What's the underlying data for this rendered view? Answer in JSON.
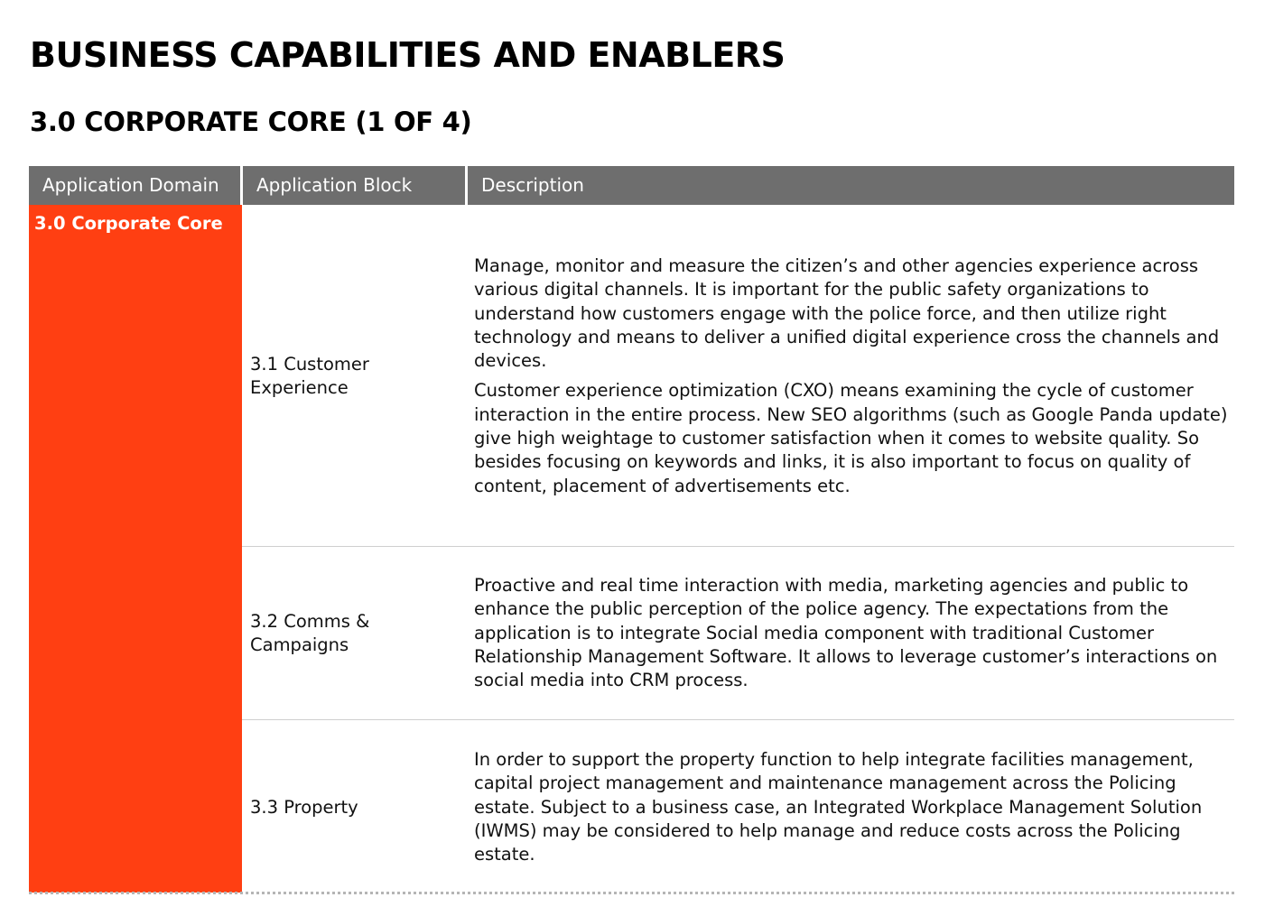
{
  "page": {
    "title": "BUSINESS CAPABILITIES AND ENABLERS",
    "section_title": "3.0 CORPORATE CORE (1 OF 4)"
  },
  "colors": {
    "domain_fill": "#ff3f12",
    "header_fill": "#6e6e6e"
  },
  "table": {
    "headers": {
      "domain": "Application Domain",
      "block": "Application Block",
      "description": "Description"
    },
    "domain": "3.0 Corporate Core",
    "rows": [
      {
        "block": "3.1 Customer Experience",
        "paragraphs": [
          "Manage, monitor and measure the citizen’s and other agencies experience across various digital channels. It is  important  for the public safety organizations to understand how customers engage with  the police force, and then utilize right technology and means  to deliver a unified digital experience cross the channels and devices.",
          "Customer experience optimization (CXO) means examining the cycle of customer interaction in the entire process. New SEO algorithms (such as Google Panda update) give high weightage to customer satisfaction when it comes to website quality. So besides focusing on keywords and links, it is also important to focus on quality of content, placement of advertisements etc."
        ]
      },
      {
        "block": "3.2 Comms & Campaigns",
        "paragraphs": [
          "Proactive and real time interaction with media, marketing agencies and public to enhance the public perception of the police agency. The expectations from the application is to integrate Social media component with traditional Customer Relationship Management Software. It allows to leverage customer’s interactions on social media into CRM process."
        ]
      },
      {
        "block": "3.3 Property",
        "paragraphs": [
          "In order to support the property function to help integrate facilities management, capital project management and maintenance management across the Policing estate. Subject to a business case, an Integrated Workplace Management Solution (IWMS) may be considered to help manage and reduce costs across the Policing estate."
        ]
      }
    ]
  }
}
